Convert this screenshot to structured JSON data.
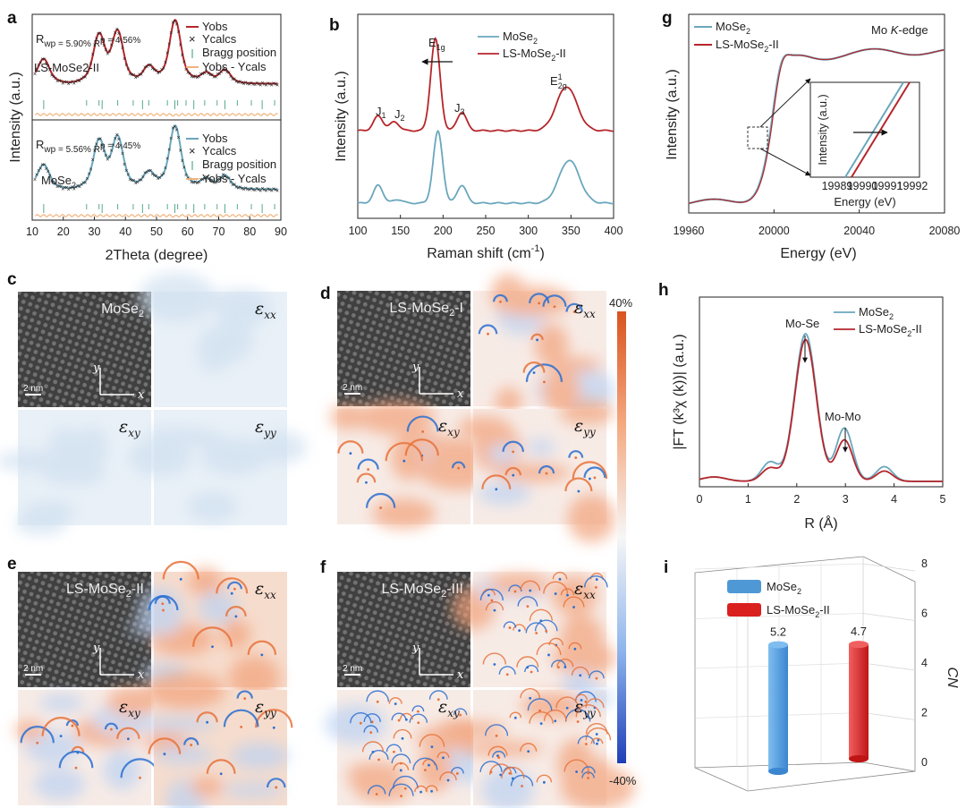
{
  "panel_letters": {
    "a": "a",
    "b": "b",
    "g": "g",
    "c": "c",
    "d": "d",
    "h": "h",
    "e": "e",
    "f": "f",
    "i": "i"
  },
  "colors": {
    "red": "#b5262b",
    "blue": "#6aa7bc",
    "orange": "#f0b37a",
    "bragg": "#58a88e",
    "blue_bar": "#4f98d6",
    "red_bar": "#d9201f",
    "map_pos": "#e8723a",
    "map_neg": "#2a6fd0"
  },
  "chart_data": [
    {
      "id": "a",
      "type": "line",
      "xlabel": "2Theta (degree)",
      "ylabel": "Intensity (a.u.)",
      "xlim": [
        10,
        90
      ],
      "xticks": [
        10,
        20,
        30,
        40,
        50,
        60,
        70,
        80,
        90
      ],
      "upper": {
        "name": "LS-MoSe2-II",
        "rwp": "R",
        "stats_text": "wp = 5.90%  R",
        "rp_text": "p = 4.56%",
        "legend": [
          "Yobs",
          "Ycalcs",
          "Bragg position",
          "Yobs - Ycals"
        ]
      },
      "lower": {
        "name": "MoSe2",
        "rwp": "R",
        "stats_text": "wp = 5.56%  R",
        "rp_text": "p = 4.45%",
        "legend": [
          "Yobs",
          "Ycalcs",
          "Bragg position",
          "Yobs - Ycals"
        ]
      },
      "peaks": [
        [
          13.7,
          0.35
        ],
        [
          31.5,
          0.7
        ],
        [
          37.5,
          0.75
        ],
        [
          47.5,
          0.25
        ],
        [
          56,
          0.95
        ],
        [
          66,
          0.15
        ],
        [
          72,
          0.2
        ]
      ],
      "bragg_positions": [
        13.7,
        27.5,
        31.5,
        32.5,
        37.5,
        42.5,
        45.5,
        47.5,
        53.5,
        55.9,
        56.8,
        59.5,
        62,
        65.5,
        69.5,
        72,
        76,
        80.5,
        84,
        88
      ]
    },
    {
      "id": "b",
      "type": "line",
      "xlabel": "Raman shift (cm",
      "xlabel_sup": "-1",
      "xlabel_end": ")",
      "ylabel": "Intensity (a.u.)",
      "xlim": [
        100,
        400
      ],
      "xticks": [
        100,
        150,
        200,
        250,
        300,
        350,
        400
      ],
      "series": [
        {
          "name": "MoSe",
          "sub": "2",
          "peaks": [
            [
              124,
              0.25
            ],
            [
              147,
              0.05
            ],
            [
              194,
              1.0
            ],
            [
              222,
              0.25
            ],
            [
              348,
              0.6
            ]
          ]
        },
        {
          "name": "LS-MoSe",
          "sub": "2",
          "suffix": "-II",
          "peaks": [
            [
              124,
              0.2
            ],
            [
              143,
              0.12
            ],
            [
              191,
              1.25
            ],
            [
              222,
              0.25
            ],
            [
              345,
              0.6
            ]
          ]
        }
      ],
      "annotations": {
        "J1": "J",
        "J1s": "1",
        "J2": "J",
        "J2s": "2",
        "J3": "J",
        "J3s": "3",
        "E1g": "E",
        "E1gs": "1g",
        "E2g": "E",
        "E2gsup": "1",
        "E2gs": "2g"
      }
    },
    {
      "id": "g",
      "type": "line",
      "xlabel": "Energy (eV)",
      "ylabel": "Intensity (a.u.)",
      "xlim": [
        19960,
        20080
      ],
      "xticks": [
        19960,
        20000,
        20040,
        20080
      ],
      "title": "Mo",
      "title_italic": "K",
      "title_end": "-edge",
      "series": [
        {
          "name": "MoSe",
          "sub": "2"
        },
        {
          "name": "LS-MoSe",
          "sub": "2",
          "suffix": "-II"
        }
      ],
      "inset": {
        "xlabel": "Energy  (eV)",
        "ylabel": "Intensity (a.u.)",
        "xticks": [
          19989,
          19990,
          19991,
          19992
        ]
      }
    },
    {
      "id": "h",
      "type": "line",
      "xlabel": "R (Å)",
      "ylabel": "|FT (k³χ (k))| (a.u.)",
      "xlim": [
        0,
        5
      ],
      "xticks": [
        0,
        1,
        2,
        3,
        4,
        5
      ],
      "series": [
        {
          "name": "MoSe",
          "sub": "2",
          "peaks": [
            [
              1.45,
              0.13
            ],
            [
              2.18,
              1.0
            ],
            [
              2.98,
              0.36
            ],
            [
              3.8,
              0.1
            ]
          ]
        },
        {
          "name": "LS-MoSe",
          "sub": "2",
          "suffix": "-II",
          "peaks": [
            [
              1.45,
              0.09
            ],
            [
              2.18,
              0.96
            ],
            [
              2.98,
              0.28
            ],
            [
              3.8,
              0.07
            ]
          ]
        }
      ],
      "annotations": {
        "mose": "Mo-Se",
        "momo": "Mo-Mo"
      }
    },
    {
      "id": "i",
      "type": "bar",
      "categories": [
        "MoSe2",
        "LS-MoSe2-II"
      ],
      "values": [
        5.2,
        4.7
      ],
      "labels": [
        "5.2",
        "4.7"
      ],
      "zlabel": "CN",
      "zlim": [
        0,
        8
      ],
      "zticks": [
        0,
        2,
        4,
        6,
        8
      ],
      "legend": [
        {
          "name": "MoSe",
          "sub": "2"
        },
        {
          "name": "LS-MoSe",
          "sub": "2",
          "suffix": "-II"
        }
      ]
    }
  ],
  "strain_maps": {
    "c": {
      "label": "MoSe",
      "sub": "2",
      "suffix": ""
    },
    "d": {
      "label": "LS-MoSe",
      "sub": "2",
      "suffix": "-I"
    },
    "e": {
      "label": "LS-MoSe",
      "sub": "2",
      "suffix": "-II"
    },
    "f": {
      "label": "LS-MoSe",
      "sub": "2",
      "suffix": "-III"
    },
    "eps": "ε",
    "xx": "xx",
    "xy": "xy",
    "yy": "yy",
    "scale": "2 nm",
    "ax_x": "x",
    "ax_y": "y"
  },
  "colorbar": {
    "max": "40%",
    "min": "-40%"
  }
}
